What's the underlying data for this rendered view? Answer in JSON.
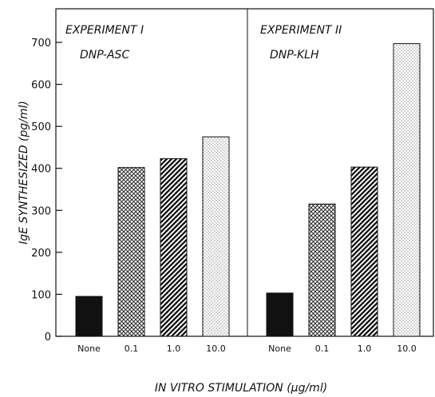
{
  "chart_data": {
    "type": "bar",
    "ylabel": "IgE SYNTHESIZED (pg/ml)",
    "xlabel": "IN VITRO STIMULATION (μg/ml)",
    "ylim": [
      0,
      780
    ],
    "yticks": [
      0,
      100,
      200,
      300,
      400,
      500,
      600,
      700
    ],
    "categories": [
      "None",
      "0.1",
      "1.0",
      "10.0"
    ],
    "bar_patterns": [
      "solid",
      "crosshatch",
      "diagonal",
      "dots"
    ],
    "panels": [
      {
        "title": "EXPERIMENT I",
        "subtitle": "DNP-ASC",
        "values": [
          95,
          402,
          423,
          475
        ]
      },
      {
        "title": "EXPERIMENT II",
        "subtitle": "DNP-KLH",
        "values": [
          103,
          315,
          403,
          697
        ]
      }
    ]
  }
}
